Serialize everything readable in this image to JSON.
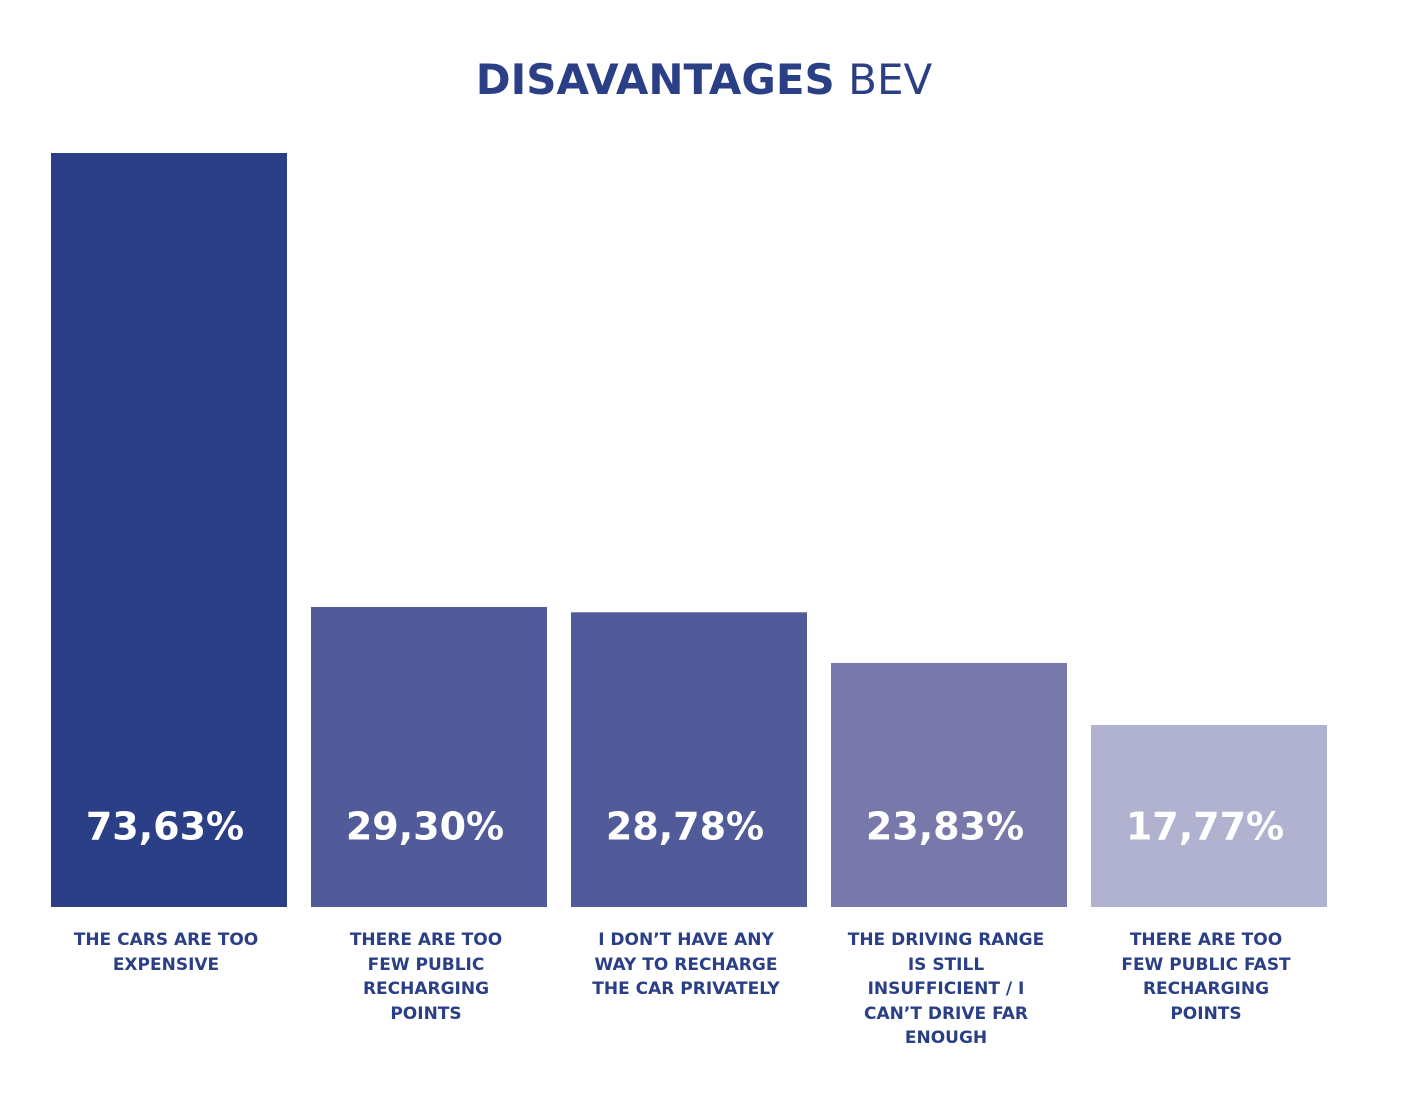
{
  "chart_data": {
    "type": "bar",
    "title": "DISAVANTAGES BEV",
    "categories": [
      "THE CARS ARE TOO EXPENSIVE",
      "THERE ARE TOO FEW PUBLIC RECHARGING POINTS",
      "I DON’T HAVE ANY WAY TO RECHARGE THE CAR PRIVATELY",
      "THE DRIVING RANGE IS STILL INSUFFICIENT / I CAN’T DRIVE FAR ENOUGH",
      "THERE ARE TOO FEW PUBLIC FAST RECHARGING POINTS"
    ],
    "values": [
      73.63,
      29.3,
      28.78,
      23.83,
      17.77
    ],
    "value_labels": [
      "73,63%",
      "29,30%",
      "28,78%",
      "23,83%",
      "17,77%"
    ],
    "colors": [
      "#2b3f87",
      "#515b99",
      "#515b99",
      "#7878ab",
      "#b0b2d0"
    ]
  }
}
